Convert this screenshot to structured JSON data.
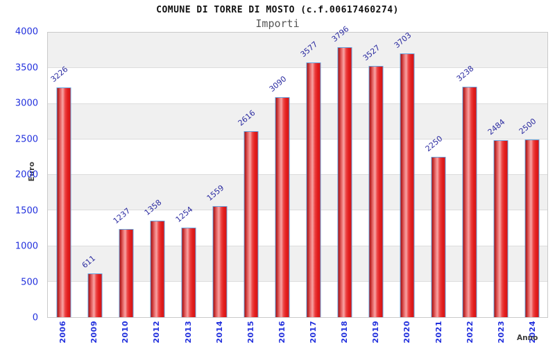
{
  "chart_data": {
    "type": "bar",
    "title": "COMUNE DI TORRE DI MOSTO (c.f.00617460274)",
    "subtitle": "Importi",
    "xlabel": "Anno",
    "ylabel": "Euro",
    "categories": [
      "2006",
      "2009",
      "2010",
      "2012",
      "2013",
      "2014",
      "2015",
      "2016",
      "2017",
      "2018",
      "2019",
      "2020",
      "2021",
      "2022",
      "2023",
      "2024"
    ],
    "values": [
      3226,
      611,
      1237,
      1358,
      1254,
      1559,
      2616,
      3090,
      3577,
      3796,
      3527,
      3703,
      2250,
      3238,
      2484,
      2500
    ],
    "ylim": [
      0,
      4000
    ],
    "yticks": [
      0,
      500,
      1000,
      1500,
      2000,
      2500,
      3000,
      3500,
      4000
    ],
    "grid": "horizontal-bands",
    "legend": "none",
    "colors": {
      "bar_fill": "#e31f1f",
      "bar_border": "#64a0dc",
      "value_label": "#2a2aa0",
      "axis_tick": "#2230dd",
      "band": "#f0f0f0",
      "band_alt": "#ffffff",
      "gridline": "#dcdcdc"
    }
  }
}
